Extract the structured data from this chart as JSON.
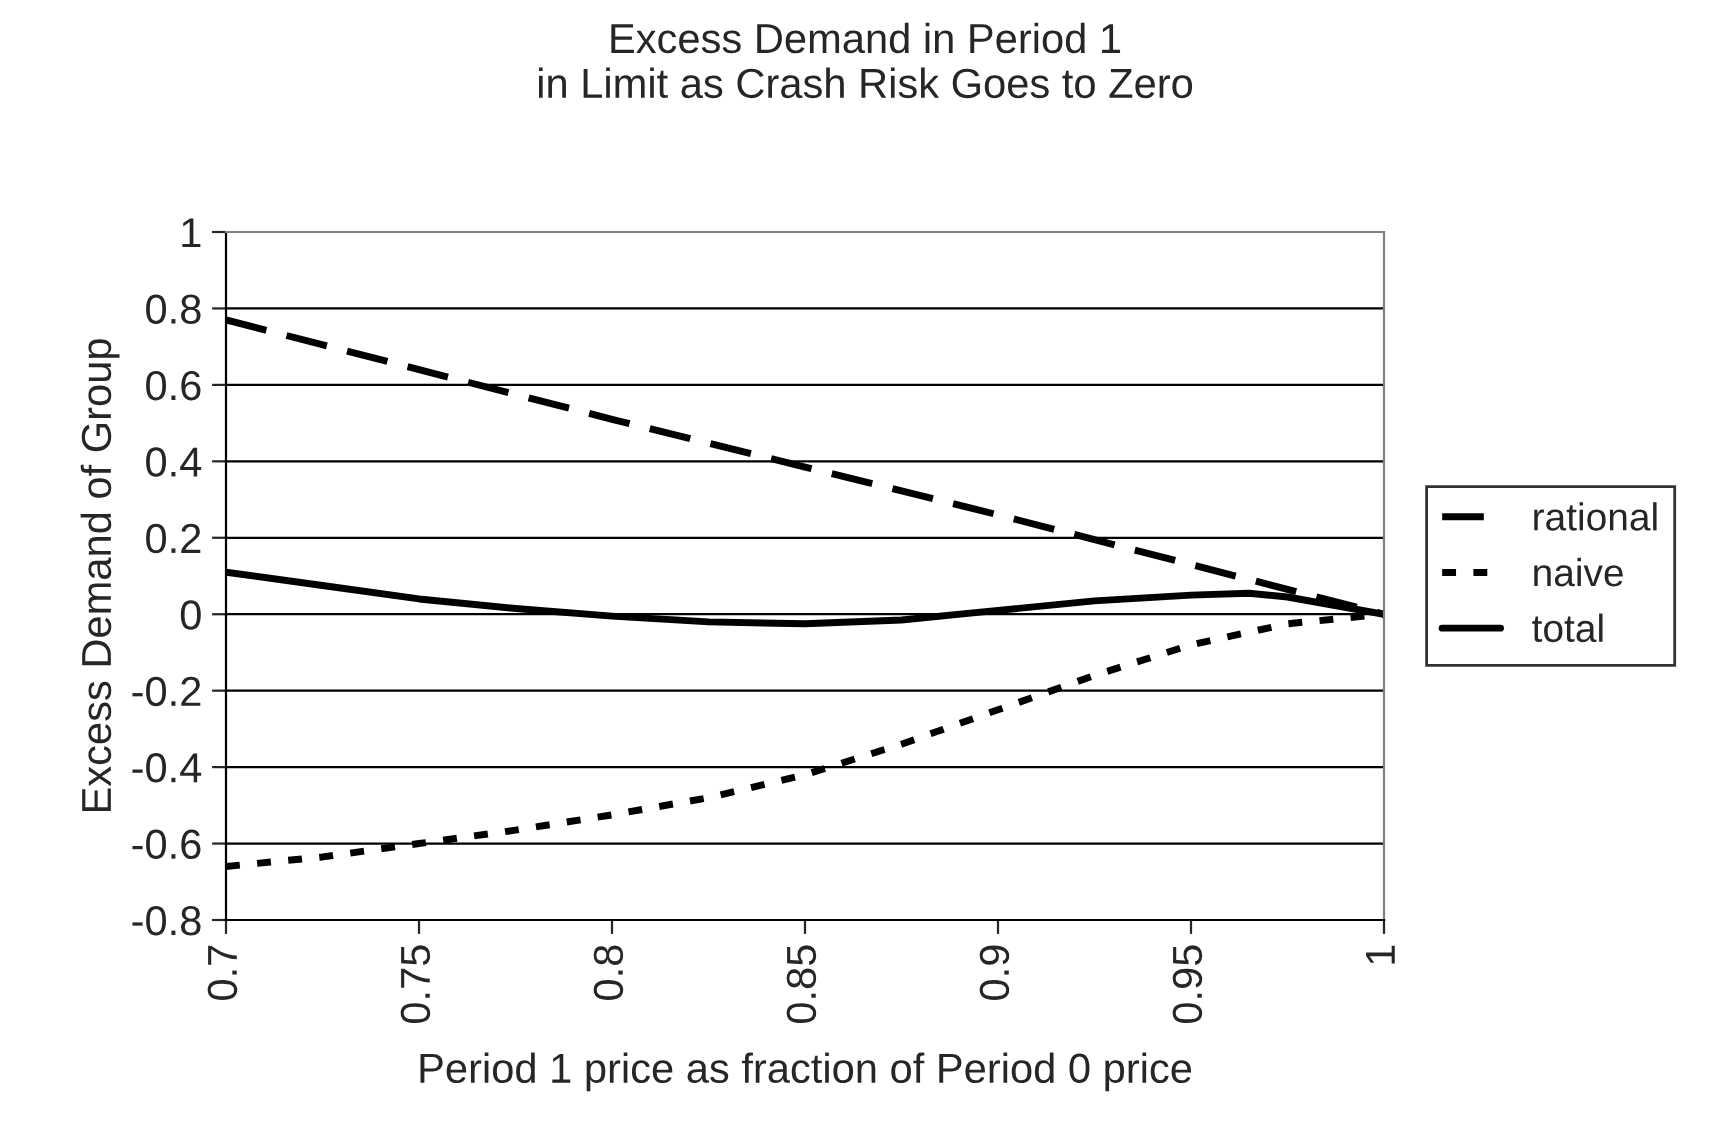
{
  "chart_data": {
    "type": "line",
    "title": "Excess Demand in Period 1\nin Limit as Crash Risk Goes to Zero",
    "xlabel": "Period 1 price as fraction of Period 0 price",
    "ylabel": "Excess Demand of Group",
    "xlim": [
      0.7,
      1
    ],
    "xticks": [
      0.7,
      0.75,
      0.8,
      0.85,
      0.9,
      0.95,
      1
    ],
    "ylim": [
      -0.8,
      1
    ],
    "yticks": [
      -0.8,
      -0.6,
      -0.4,
      -0.2,
      0,
      0.2,
      0.4,
      0.6,
      0.8,
      1
    ],
    "grid": "y",
    "legend": "right",
    "series": [
      {
        "name": "rational",
        "color": "#000000",
        "line_style": "dashed",
        "x": [
          0.7,
          0.75,
          0.8,
          0.85,
          0.9,
          0.95,
          1
        ],
        "values": [
          0.77,
          0.64,
          0.51,
          0.385,
          0.26,
          0.13,
          0
        ]
      },
      {
        "name": "naive",
        "color": "#000000",
        "line_style": "dotted",
        "x": [
          0.7,
          0.725,
          0.75,
          0.775,
          0.8,
          0.825,
          0.85,
          0.875,
          0.9,
          0.925,
          0.95,
          0.975,
          1
        ],
        "values": [
          -0.66,
          -0.635,
          -0.6,
          -0.565,
          -0.525,
          -0.48,
          -0.42,
          -0.34,
          -0.25,
          -0.16,
          -0.08,
          -0.025,
          0
        ]
      },
      {
        "name": "total",
        "color": "#000000",
        "line_style": "solid",
        "x": [
          0.7,
          0.725,
          0.75,
          0.775,
          0.8,
          0.825,
          0.85,
          0.875,
          0.9,
          0.925,
          0.95,
          0.965,
          0.975,
          1
        ],
        "values": [
          0.11,
          0.075,
          0.04,
          0.015,
          -0.005,
          -0.02,
          -0.025,
          -0.015,
          0.01,
          0.035,
          0.05,
          0.055,
          0.045,
          0
        ]
      }
    ]
  }
}
